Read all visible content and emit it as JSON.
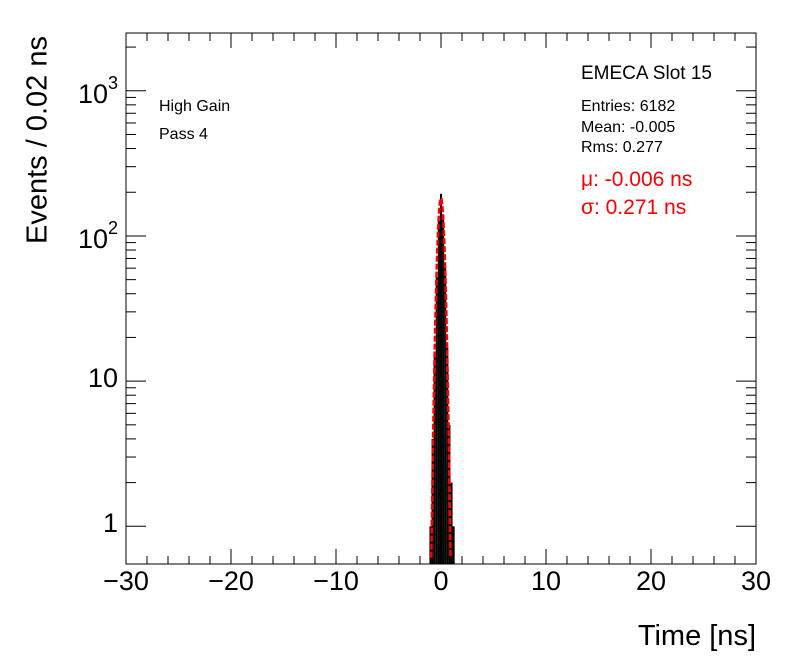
{
  "chart_data": {
    "type": "histogram",
    "xlabel": "Time [ns]",
    "ylabel": "Events / 0.02 ns",
    "xlim": [
      -30,
      30
    ],
    "ylim": [
      0.55,
      2500
    ],
    "yscale": "log",
    "x_ticks": [
      "−30",
      "−20",
      "−10",
      "0",
      "10",
      "20",
      "30"
    ],
    "y_tick_labels": [
      {
        "value": 1,
        "base": "1",
        "exp": ""
      },
      {
        "value": 10,
        "base": "10",
        "exp": ""
      },
      {
        "value": 100,
        "base": "10",
        "exp": "2"
      },
      {
        "value": 1000,
        "base": "10",
        "exp": "3"
      }
    ],
    "histogram": {
      "color": "#000000",
      "bins": [
        {
          "x": -1.0,
          "count": 1
        },
        {
          "x": -0.8,
          "count": 4
        },
        {
          "x": -0.6,
          "count": 16
        },
        {
          "x": -0.4,
          "count": 52
        },
        {
          "x": -0.2,
          "count": 128
        },
        {
          "x": 0.0,
          "count": 195
        },
        {
          "x": 0.2,
          "count": 140
        },
        {
          "x": 0.4,
          "count": 60
        },
        {
          "x": 0.6,
          "count": 17
        },
        {
          "x": 0.8,
          "count": 5
        },
        {
          "x": 1.0,
          "count": 2
        },
        {
          "x": 1.2,
          "count": 1
        }
      ]
    },
    "fit": {
      "color": "#ff0000",
      "mu": -0.006,
      "sigma": 0.271,
      "peak": 182
    },
    "annotations": {
      "gain": "High Gain",
      "pass": "Pass 4",
      "slot": "EMECA Slot 15",
      "entries": "Entries: 6182",
      "mean": "Mean: -0.005",
      "rms": "Rms: 0.277",
      "mu_text": "μ: -0.006 ns",
      "sigma_text": "σ: 0.271 ns"
    }
  }
}
